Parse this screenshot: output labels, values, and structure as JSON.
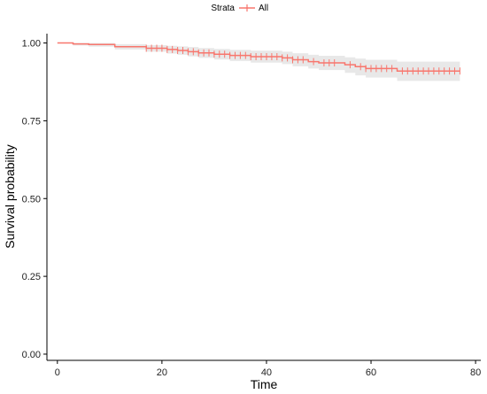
{
  "chart_data": {
    "type": "line",
    "subtype": "kaplan-meier survival curve",
    "title": "",
    "xlabel": "Time",
    "ylabel": "Survival probability",
    "xlim": [
      -2,
      81
    ],
    "ylim": [
      -0.02,
      1.03
    ],
    "x_ticks": [
      0,
      20,
      40,
      60,
      80
    ],
    "y_ticks": [
      0.0,
      0.25,
      0.5,
      0.75,
      1.0
    ],
    "x_tick_labels": [
      "0",
      "20",
      "40",
      "60",
      "80"
    ],
    "y_tick_labels": [
      "0.00",
      "0.25",
      "0.50",
      "0.75",
      "1.00"
    ],
    "grid": false,
    "legend": {
      "title": "Strata",
      "position": "top",
      "entries": [
        "All"
      ]
    },
    "colors": {
      "line": "#f8766d",
      "band": "#d9d9d9",
      "axis": "#000000"
    },
    "series": [
      {
        "name": "All",
        "step_x": [
          0,
          3,
          6,
          11,
          17,
          21,
          23,
          25,
          27,
          30,
          33,
          37,
          43,
          45,
          48,
          50,
          55,
          57,
          59,
          65,
          77
        ],
        "step_y": [
          1.0,
          0.997,
          0.995,
          0.988,
          0.983,
          0.979,
          0.976,
          0.972,
          0.968,
          0.964,
          0.96,
          0.956,
          0.952,
          0.946,
          0.94,
          0.936,
          0.93,
          0.924,
          0.918,
          0.91,
          0.91
        ],
        "ci_lower": [
          1.0,
          0.992,
          0.988,
          0.979,
          0.972,
          0.966,
          0.962,
          0.957,
          0.952,
          0.947,
          0.942,
          0.937,
          0.932,
          0.925,
          0.918,
          0.913,
          0.904,
          0.896,
          0.889,
          0.878,
          0.878
        ],
        "ci_upper": [
          1.0,
          1.0,
          1.0,
          0.996,
          0.993,
          0.991,
          0.989,
          0.987,
          0.984,
          0.981,
          0.978,
          0.975,
          0.972,
          0.967,
          0.962,
          0.959,
          0.954,
          0.95,
          0.946,
          0.94,
          0.94
        ],
        "censor_times": [
          17,
          18,
          19,
          20,
          21,
          22,
          23,
          24,
          25,
          26,
          27,
          28,
          29,
          30,
          31,
          32,
          33,
          34,
          35,
          36,
          37,
          38,
          39,
          40,
          41,
          42,
          43,
          44,
          45,
          46,
          47,
          49,
          51,
          52,
          53,
          56,
          58,
          59,
          60,
          61,
          62,
          63,
          64,
          66,
          67,
          68,
          69,
          70,
          71,
          72,
          73,
          74,
          75,
          76,
          77
        ]
      }
    ]
  }
}
